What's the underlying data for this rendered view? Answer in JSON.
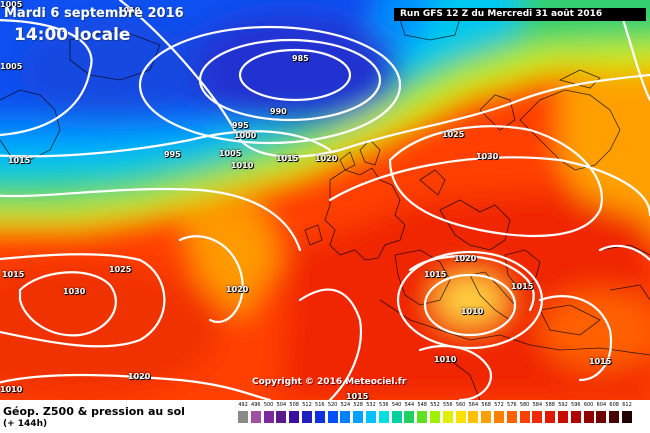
{
  "header": {
    "date": "Mardi 6 septembre 2016",
    "local_time": "14:00 locale",
    "run": "Run GFS 12 Z du Mercredi 31 août 2016"
  },
  "copyright": "Copyright © 2016 Meteociel.fr",
  "footer": {
    "title": "Géop. Z500 & pression au sol",
    "subtitle": "(+ 144h)"
  },
  "isobar_labels": [
    "1010",
    "1005",
    "985",
    "990",
    "995",
    "1000",
    "995",
    "1005",
    "1010",
    "1015",
    "1020",
    "1025",
    "1030",
    "1020",
    "1015",
    "1010",
    "1015",
    "1010",
    "1015",
    "1020",
    "1025",
    "1030",
    "1015",
    "1020",
    "1015",
    "1010",
    "1015",
    "1005"
  ],
  "scale": {
    "ticks": [
      "492",
      "496",
      "500",
      "504",
      "508",
      "512",
      "516",
      "520",
      "524",
      "528",
      "532",
      "536",
      "540",
      "544",
      "548",
      "552",
      "556",
      "560",
      "564",
      "568",
      "572",
      "576",
      "580",
      "584",
      "588",
      "592",
      "596",
      "600",
      "604",
      "608",
      "612"
    ],
    "colors": [
      "#8a8a8a",
      "#a050a0",
      "#7a2a9a",
      "#5a1a8a",
      "#3a10a0",
      "#2020c0",
      "#1030e0",
      "#0050ff",
      "#0080ff",
      "#00a0ff",
      "#00c0ff",
      "#00e0e0",
      "#00d0a0",
      "#20d060",
      "#60e020",
      "#a0f000",
      "#e0f000",
      "#ffe000",
      "#ffc000",
      "#ffa000",
      "#ff8000",
      "#ff6000",
      "#ff4000",
      "#f02800",
      "#e01800",
      "#c80c00",
      "#b00000",
      "#900000",
      "#700000",
      "#4a0000",
      "#200000"
    ]
  }
}
